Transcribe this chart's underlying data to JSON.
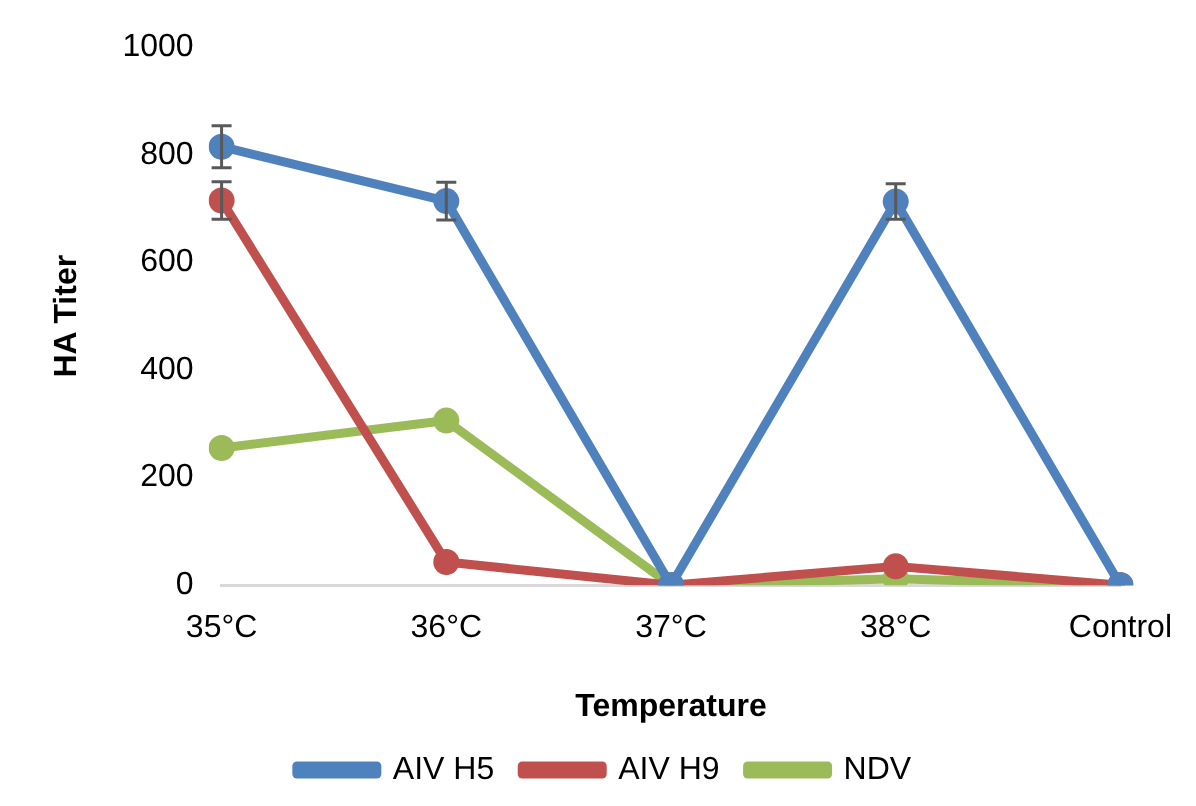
{
  "chart_data": {
    "type": "line",
    "xlabel": "Temperature",
    "ylabel": "HA Titer",
    "categories": [
      "35°C",
      "36°C",
      "37°C",
      "38°C",
      "Control"
    ],
    "series": [
      {
        "name": "AIV H5",
        "color": "#4f81bd",
        "values": [
          815,
          714,
          0,
          713,
          0
        ],
        "errors": [
          39,
          35,
          null,
          33,
          null
        ]
      },
      {
        "name": "AIV H9",
        "color": "#c0504d",
        "values": [
          715,
          43,
          0,
          35,
          0
        ],
        "errors": [
          35,
          null,
          null,
          null,
          null
        ]
      },
      {
        "name": "NDV",
        "color": "#9bbb59",
        "values": [
          255,
          306,
          0,
          12,
          0
        ]
      }
    ],
    "ylim": [
      0,
      1000
    ],
    "yticks": [
      0,
      200,
      400,
      600,
      800,
      1000
    ],
    "grid": false,
    "legend": "bottom",
    "marker": "circle",
    "line_style": "solid"
  }
}
